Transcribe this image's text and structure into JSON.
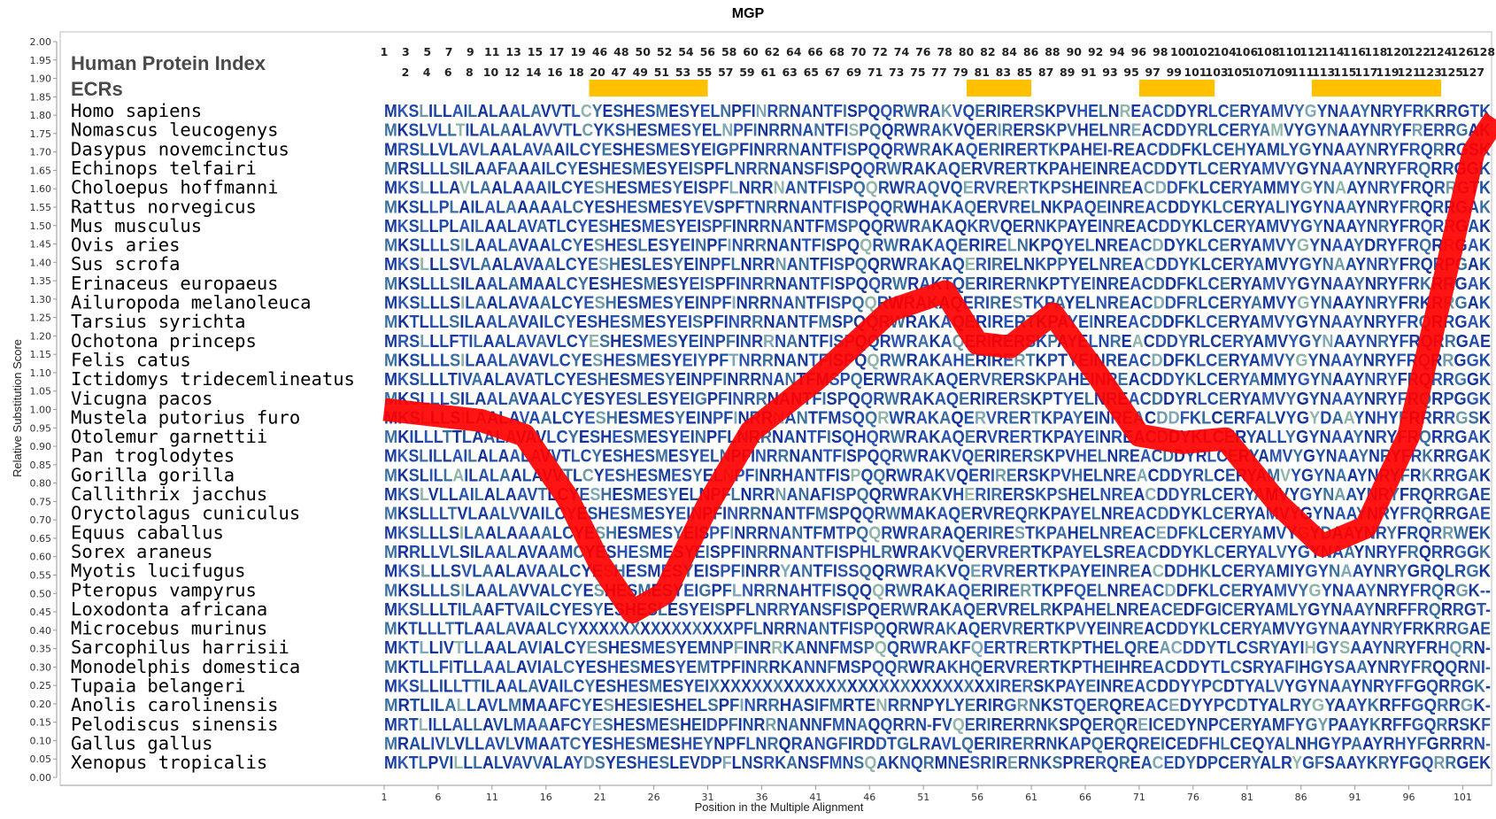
{
  "chart_data": {
    "type": "line",
    "title": "MGP",
    "xlabel": "Position in the Multiple Alignment",
    "ylabel": "Relative Substitution Score",
    "ylim": [
      0,
      2.0
    ],
    "y_ticks": [
      "0.00",
      "0.05",
      "0.10",
      "0.15",
      "0.20",
      "0.25",
      "0.30",
      "0.35",
      "0.40",
      "0.45",
      "0.50",
      "0.55",
      "0.60",
      "0.65",
      "0.70",
      "0.75",
      "0.80",
      "0.85",
      "0.90",
      "0.95",
      "1.00",
      "1.05",
      "1.10",
      "1.15",
      "1.20",
      "1.25",
      "1.30",
      "1.35",
      "1.40",
      "1.45",
      "1.50",
      "1.55",
      "1.60",
      "1.65",
      "1.70",
      "1.75",
      "1.80",
      "1.85",
      "1.90",
      "1.95",
      "2.00"
    ],
    "x_ticks": [
      "1",
      "6",
      "11",
      "16",
      "21",
      "26",
      "31",
      "36",
      "41",
      "46",
      "51",
      "56",
      "61",
      "66",
      "71",
      "76",
      "81",
      "86",
      "91",
      "96",
      "101"
    ],
    "track_labels": [
      "Human Protein Index",
      "ECRs"
    ],
    "protein_index_row1": [
      "1",
      "3",
      "5",
      "7",
      "9",
      "11",
      "13",
      "15",
      "17",
      "19",
      "46",
      "48",
      "50",
      "52",
      "54",
      "56",
      "58",
      "60",
      "62",
      "64",
      "66",
      "68",
      "70",
      "72",
      "74",
      "76",
      "78",
      "80",
      "82",
      "84",
      "86",
      "88",
      "90",
      "92",
      "94",
      "96",
      "98",
      "100",
      "102",
      "104",
      "106",
      "108",
      "110",
      "112",
      "114",
      "116",
      "118",
      "120",
      "122",
      "124",
      "126",
      "128"
    ],
    "protein_index_row2": [
      "2",
      "4",
      "6",
      "8",
      "10",
      "12",
      "14",
      "16",
      "18",
      "20",
      "47",
      "49",
      "51",
      "53",
      "55",
      "57",
      "59",
      "61",
      "63",
      "65",
      "67",
      "69",
      "71",
      "73",
      "75",
      "77",
      "79",
      "81",
      "83",
      "85",
      "87",
      "89",
      "91",
      "93",
      "95",
      "97",
      "99",
      "101",
      "103",
      "105",
      "107",
      "109",
      "111",
      "113",
      "115",
      "117",
      "119",
      "121",
      "123",
      "125",
      "127"
    ],
    "ecr_regions": [
      [
        20,
        31
      ],
      [
        55,
        61
      ],
      [
        71,
        78
      ],
      [
        87,
        99
      ]
    ],
    "ecr_color": "#FFC000",
    "series_color": "#FF0000",
    "x": [
      1,
      10,
      14,
      18,
      21,
      24,
      27,
      31,
      35,
      41,
      48,
      53,
      56,
      59,
      63,
      67,
      71,
      75,
      79,
      84,
      88,
      92,
      96,
      102,
      104
    ],
    "y": [
      1.0,
      0.97,
      0.93,
      0.76,
      0.58,
      0.45,
      0.5,
      0.74,
      0.94,
      1.08,
      1.27,
      1.32,
      1.18,
      1.17,
      1.26,
      1.1,
      0.93,
      0.91,
      0.92,
      0.74,
      0.63,
      0.68,
      0.93,
      1.7,
      1.79
    ],
    "species": [
      "Homo sapiens",
      "Nomascus leucogenys",
      "Dasypus novemcinctus",
      "Echinops telfairi",
      "Choloepus hoffmanni",
      "Rattus norvegicus",
      "Mus musculus",
      "Ovis aries",
      "Sus scrofa",
      "Erinaceus europaeus",
      "Ailuropoda melanoleuca",
      "Tarsius syrichta",
      "Ochotona princeps",
      "Felis catus",
      "Ictidomys tridecemlineatus",
      "Vicugna pacos",
      "Mustela putorius furo",
      "Otolemur garnettii",
      "Pan troglodytes",
      "Gorilla gorilla",
      "Callithrix jacchus",
      "Oryctolagus cuniculus",
      "Equus caballus",
      "Sorex araneus",
      "Myotis lucifugus",
      "Pteropus vampyrus",
      "Loxodonta africana",
      "Microcebus murinus",
      "Sarcophilus harrisii",
      "Monodelphis domestica",
      "Tupaia belangeri",
      "Anolis carolinensis",
      "Pelodiscus sinensis",
      "Gallus gallus",
      "Xenopus tropicalis"
    ],
    "sequences": [
      "MKSLILLAILALAALAVVTLCYESHESMESYELNPFINRRNANTFISPQQRWRAKVQERIRERSKPVHELNREACDDYRLCERYAMVYGYNAAYNRYFRKRRGTK",
      "MKSLVLLTILALAALAVVTLCYKSHESMESYELNPFINRRNANTFISPQQRWRAKVQERIRERSKPVHELNREACDDYRLCERYAMVYGYNAAYNRYFRERRGAK",
      "MRSLLVLAVLAALAVAAILCYESHESMESYEIGPFINRRNANTFISPQQRWRAKAQERIRERTKPAHEI-REACDDFKLCEHYAMLYGYNAAYNRYFRQRRGSK",
      "MRSLLLSILAAFAAAILCYESHESMESYEISPFLNRRNANSFISPQQRWRAKAQERVRERTKPAHEINREACDDYTLCERYAMVYGYNAAYNRYFRQRRGGK",
      "MKSLLLAVLAALAAAILCYESHESMESYEISPFLNRRNANTFISPQQRWRAQVQERVRERTKPSHEINREACDDFKLCERYAMMYGYNAAYNRYFRQRRGTK",
      "MKSLLPLAILALAAAAALCYESHESMESYEVSPFTNRRNANTFISPQQRWHAKAQERVRELNKPAQEINREACDDYKLCERYALIYGYNAAYNRYFRQRRGAK",
      "MKSLLPLAILAALAVATLCYESHESMESYEISPFINRRNANTFMSPQQRWRAKAQKRVQERNKPAYEINREACDDYKLCERYAMVYGYNAAYNRYFRQRRGAK",
      "MKSLLLSILAALAVAALCYESHESLESYEINPFINRRNANTFISPQQRWRAKAQERIRELNKPQYELNREACDDYKLCERYAMVYGYNAAYDRYFRQRRGAK",
      "MKSLLLSVLAALAVAALCYESHESLESYEINPFLNRRNANTFISPQQRWRAKAQERIRELNKPPYELNREACDDYKLCERYAMVYGYNAAYNRYFRQRPGAK",
      "MKSLLLSILAALAMAALCYESHESMESYEISPFINRRNANTFISPQQRWRAKTQERIRERNKPTYEINREACDDFKLCERYAMVYGYNAAYNRYFRKRRGAK",
      "MKSLLLSILAALAVAALCYESHESMESYEINPFINRRNANTFISPQQRWRAKAQERIRESTKPAYELNREACDDFRLCERYAMVYGYNAAYNRYFRKRRGAK",
      "MKTLLLSILAALAVAILCYESHESMESYEISPFINRRNANTFMSPQQRWRAKAQERIRERTKPAYEINREACDDFKLCERYAMVYGYNAAYNRYFRQRRGAK",
      "MRSLLLFTILAALAVAVLCYESHESMESYEINPFINRRNANTFISPQQRWRAKAQERIRERSKPAYELNREACDDYRLCERYAMVYGYNAAYNRYFRQRRGAE",
      "MKSLLLSILAALAVAVLCYESHESMESYEIYPFTNRRNANTFISPQQRWRAKAHERIRERTKPTYEINREACDDFKLCERYAMVYGYNAAYNRYFRQRRGGK",
      "MKSLLLTIVAALAVATLCYESHESMESYEINPFINRRNANTFMSPQERWRAKAQERVRERSKPAHEINREACDDYKLCERYAMMYGYNAAYNRYFRQRRGGK",
      "MKSLLLSILAALAVAALCYESYESLESYEIGPFINRRNANTFISPQQRWRAKAQERIRERSKPTYELNREACDDYRLCERYAMVYGYNAAYNRYFRQRPGGK",
      "MKSLLLSILAALAVAALCYESHESMESYEINPFINRRNANTFMSQQRWRAKAQERVRERTKPAYEINREACDDFKLCERFALVYGYDAAYNHYFRRRRGSK",
      "MKILLLTTLAALAVAVLCYESHESMESYEINPFLNRRNANTFISQHQRWRAKAQERVRERTKPAYEINREACDDYKLCERYALLYGYNAAYNRYFRQRRGAK",
      "MKSLILLAILALAALAVVTLCYESHESMESYELNPFINRRNANTFISPQQRWRAKVQERIRERSKPVHELNREACDDYRLCERYAMVYGYNAAYNRYFRKRRGAK",
      "MKSLILLAILALAALAVVTLCYESHESMESYELNPFINRHANTFISPQQRWRAKVQERIRERSKPVHELNREACDDYRLCERYAMVYGYNAAYNRYFRKRRGAK",
      "MKSLVLLAILALAAVTLCYESHESMESYELNPFLNRRNANAFISPQQRWRAKVHERIRERSKPSHELNREACDDYRLCERYAMVYGYNAAYNRYFRQRRGAE",
      "MKSLLLTVLAALVVAILCYESHESMESYEINPFINRRNANTFMSPQQRWMAKAQERVREQRKPAYELNREACDDYKLCERYAMVYGYNAAYNRYFRQRRGAE",
      "MKSLLLSILAALAAAALCYESHESMESYEISPFINRRNANTFMTPQQRWRARAQERIRESTKPAHELNREACEDFKLCERYAMVYGYDAAYNRYFRQRRWEK",
      "MRRLLVLSILAALAVAAMCYESHESMESYEISPFINRRNANTFISPHLRWRAKVQERVRERTKPAYELSREACDDYKLCERYALVYGYNAAYNRYFRQRRGGK",
      "MKSLLLSVLAALAVAALCYESHESMESYEISPFINRRYANTFISSQQRWRAKVQERVRERTKPAYEINREACDDHKLCERYAMIYGYNAAYNRYGRQLRGK",
      "MKSLLLSILAALAVVALCYESHESMESYEIGPFLNRRNAHTFISQQQRWRAKAQERIRERTKPFQELNREACDDFKLCERYAMVYGYNAAYNRYFRQRGK--",
      "MKSLLLTILAAFTVAILCYESYESHESLESYEISPFLNRRYANSFISPQERWRAKAQERVRELRKPAHELNREACEDFGICERYAMLYGYNAAYNRFFRQRRGT-",
      "MKTLLLTTLAALAVAALCYXXXXXXXXXXXXXXXPFLNRRNANTFISPQQRWRAKAQERVRERTKPVYEINREACDDYKLCERYAMVYGYNAAYNRYFRKRRGAE",
      "MKTLLIVTLLAALAVIALCYESHESMESYEMNPFINRRKANNFMSPQQRWRAKFQERTRERTKPTHELQREACDDYTLCSRYAYIHGYSAAYNRYFRHQRN-",
      "MKTLLFITLLAALAVIALCYESHESMESYEMTPFINRRKANNFMSPQQRWRAKHQERVRERTKPTHEIHREACDDYTLCSRYAFIHGYSAAYNRYFRQQRNI-",
      "MKSLLILLTTILAALAVAILCYESHESMESYEIXXXXXXXXXXXXXXXXXXXXXXXXXXXIRERSKPAYEINREACDDYYPCDTYALVYGYNAAYNRYFFGQRRGK-",
      "MRTLILALLAVLMMAAFCYESHESIESHELSPFINRRHASIFMRTENRRNPYLYERIRGRNKSTQERQREACEDYYPCDTYALRYGYAAYKRFFGQRRGK-",
      "MRTLILLALLAVLMAAAFCYESHESMESHEIDPFINRRNANNFMNAQQRRN-FVQERIRERRNKSPQERQREICEDYNPCERYAMFYGYPAAYKRFFGQRRSKF",
      "MRALIVLVLLAVLVMAATCYESHESMESHEYNPFLNRQRANGFIRDDTGLRAVLQERIRERRNKAPQERQREICEDFHLCEQYALNHGYPAAYRHYFGRRRN-",
      "MKTLPVILLLALVAVVALAYDSYESHESLEVDPFLNSRKANSFMNSQAKNQRMNESRIRERNKSPRERQREACEDYDPCERYALRYGFSAAYKRYFGQRRGEK"
    ]
  }
}
